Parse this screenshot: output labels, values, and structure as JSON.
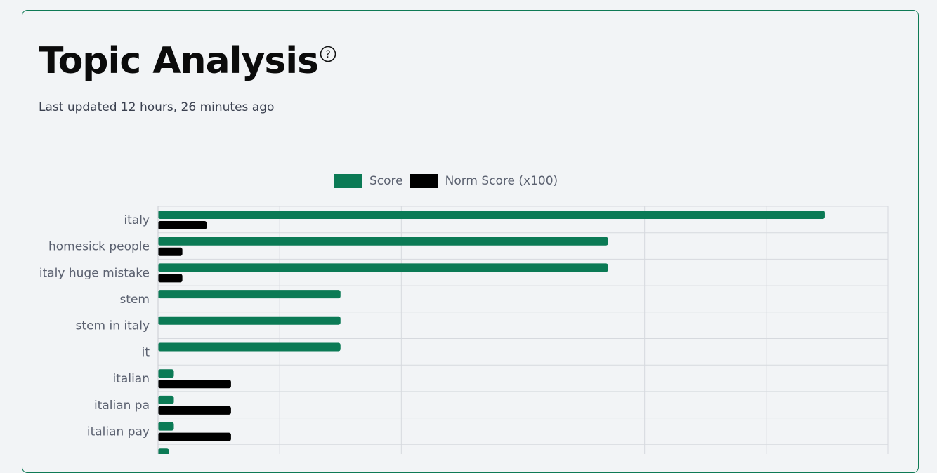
{
  "header": {
    "title": "Topic Analysis",
    "subtitle": "Last updated 12 hours, 26 minutes ago"
  },
  "colors": {
    "score": "#0b7a55",
    "norm": "#000000",
    "grid": "#d6d9de",
    "border": "#0f7a55"
  },
  "chart_data": {
    "type": "bar",
    "orientation": "horizontal",
    "legend_position": "top-center",
    "grid": true,
    "xlim": [
      0,
      6
    ],
    "categories": [
      "italy",
      "homesick people",
      "italy huge mistake",
      "stem",
      "stem in italy",
      "it",
      "italian",
      "italian pa",
      "italian pay",
      ""
    ],
    "series": [
      {
        "name": "Score",
        "values": [
          5.48,
          3.7,
          3.7,
          1.5,
          1.5,
          1.5,
          0.13,
          0.13,
          0.13,
          0.09
        ]
      },
      {
        "name": "Norm Score (x100)",
        "values": [
          0.4,
          0.2,
          0.2,
          0,
          0,
          0,
          0.6,
          0.6,
          0.6,
          0
        ]
      }
    ]
  }
}
